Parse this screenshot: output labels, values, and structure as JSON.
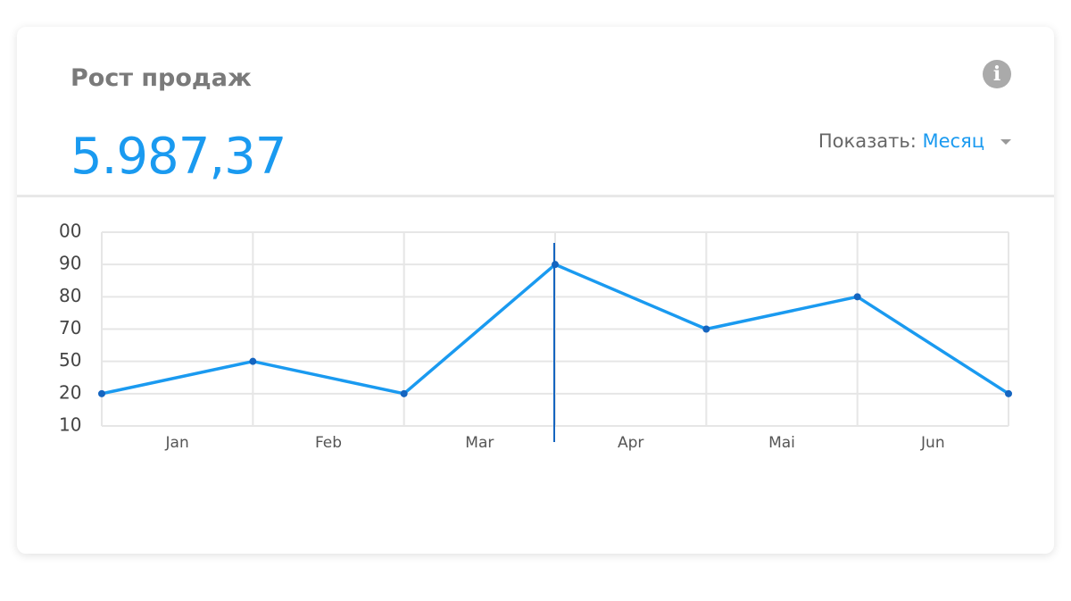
{
  "header": {
    "title": "Рост продаж",
    "value": "5.987,37",
    "show_label": "Показать:",
    "period": "Месяц"
  },
  "chart_data": {
    "type": "line",
    "x": [
      0,
      1,
      2,
      3,
      4,
      5,
      6
    ],
    "xlim": [
      0,
      6
    ],
    "xticks": [
      {
        "value": 0.5,
        "label": "Jan"
      },
      {
        "value": 1.5,
        "label": "Feb"
      },
      {
        "value": 2.5,
        "label": "Mar"
      },
      {
        "value": 3.5,
        "label": "Apr"
      },
      {
        "value": 4.5,
        "label": "Mai"
      },
      {
        "value": 5.5,
        "label": "Jun"
      }
    ],
    "series": [
      {
        "color": "#1a9af0",
        "values": [
          20,
          50,
          20,
          90,
          70,
          80,
          20
        ]
      }
    ],
    "ylim": [
      10,
      100
    ],
    "yticks": [
      10,
      20,
      50,
      70,
      80,
      90,
      {
        "value": 100,
        "label": "00"
      }
    ],
    "grid": true
  }
}
